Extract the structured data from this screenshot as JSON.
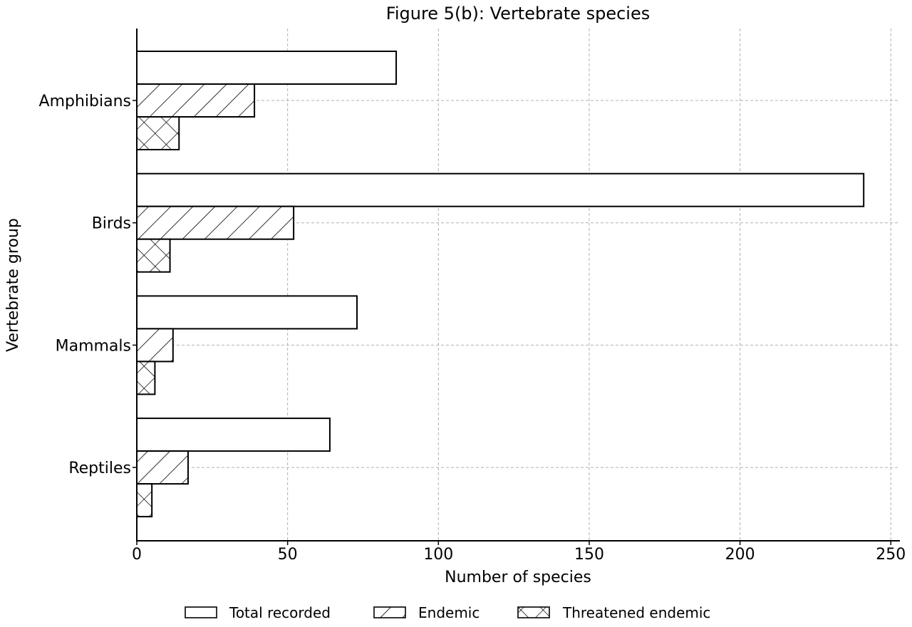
{
  "chart_data": {
    "type": "bar",
    "orientation": "horizontal",
    "title": "Figure 5(b): Vertebrate species",
    "xlabel": "Number of species",
    "ylabel": "Vertebrate group",
    "categories": [
      "Amphibians",
      "Birds",
      "Mammals",
      "Reptiles"
    ],
    "series": [
      {
        "name": "Total recorded",
        "values": [
          86,
          241,
          73,
          64
        ],
        "pattern": "none"
      },
      {
        "name": "Endemic",
        "values": [
          39,
          52,
          12,
          17
        ],
        "pattern": "diagonal-hatch"
      },
      {
        "name": "Threatened endemic",
        "values": [
          14,
          11,
          6,
          5
        ],
        "pattern": "cross-hatch"
      }
    ],
    "xlim": [
      0,
      253
    ],
    "xticks": [
      0,
      50,
      100,
      150,
      200,
      250
    ],
    "grid": true,
    "legend_position": "bottom-center",
    "colors": {
      "fill": "#ffffff",
      "edge": "#000000",
      "grid": "#b0b0b0"
    }
  }
}
